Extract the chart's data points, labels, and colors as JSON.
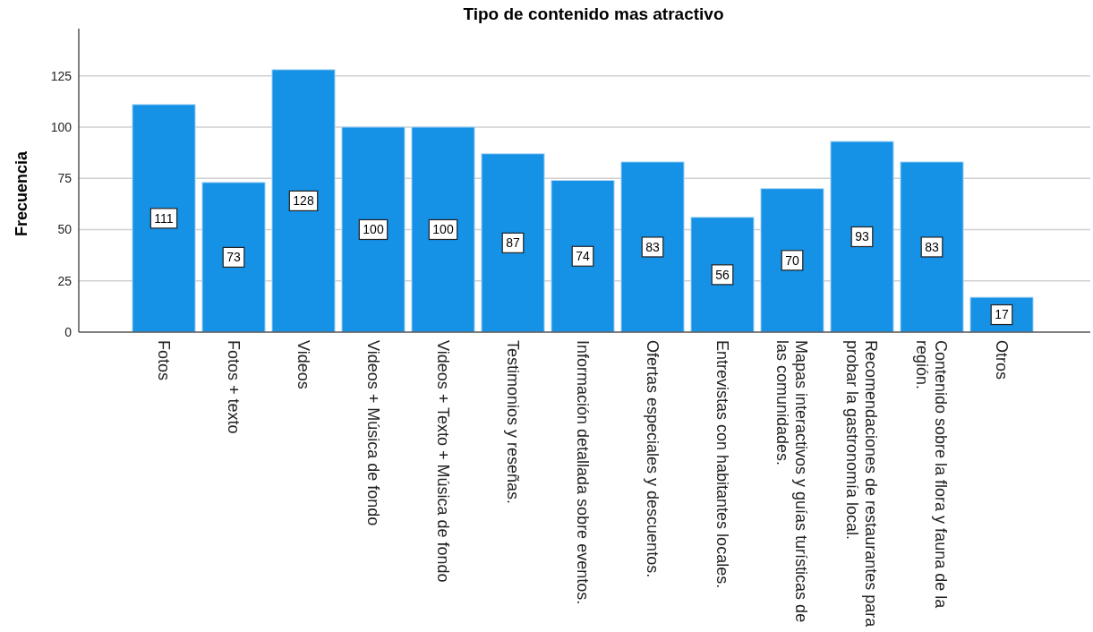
{
  "chart_data": {
    "type": "bar",
    "title": "Tipo de contenido mas atractivo",
    "ylabel": "Frecuencia",
    "categories": [
      "Fotos",
      "Fotos + texto",
      "Videos",
      "Videos + Música de fondo",
      "Videos + Texto + Música de fondo",
      "Testimonios y reseñas.",
      "Información detallada sobre eventos.",
      "Ofertas especiales y descuentos.",
      "Entrevistas con habitantes locales.",
      "Mapas interactivos y guías turísticas de las comunidades.",
      "Recomendaciones de restaurantes para probar la gastronomía local.",
      "Contenido sobre la flora y fauna de la región.",
      "Otros"
    ],
    "values": [
      111,
      73,
      128,
      100,
      100,
      87,
      74,
      83,
      56,
      70,
      93,
      83,
      17
    ],
    "color": "#1591e6",
    "ylim": [
      0,
      148
    ],
    "yticks": [
      0,
      25,
      50,
      75,
      100,
      125
    ],
    "grid": "y",
    "data_labels": true
  }
}
